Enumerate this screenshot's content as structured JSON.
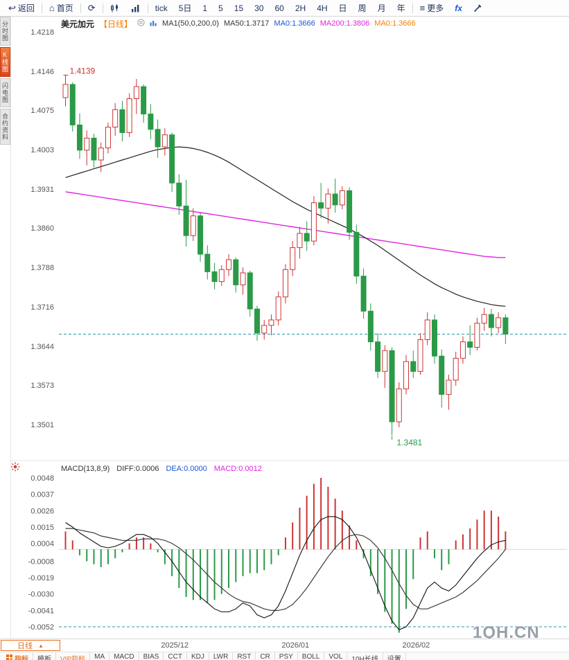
{
  "toolbar": {
    "items": [
      {
        "name": "back-button",
        "icon": "back-arrow-icon",
        "label": "返回"
      },
      {
        "sep": true
      },
      {
        "name": "home-button",
        "icon": "home-icon",
        "label": "首页"
      },
      {
        "sep": true
      },
      {
        "name": "refresh-button",
        "icon": "refresh-icon",
        "label": ""
      },
      {
        "sep": true
      },
      {
        "name": "kline-style-button",
        "icon": "kline-chart-icon",
        "label": ""
      },
      {
        "name": "volume-style-button",
        "icon": "volume-bars-icon",
        "label": ""
      },
      {
        "sep": true
      },
      {
        "name": "period-tick-button",
        "label": "tick"
      },
      {
        "name": "period-5day-button",
        "label": "5日"
      },
      {
        "name": "period-1-button",
        "label": "1"
      },
      {
        "name": "period-5-button",
        "label": "5"
      },
      {
        "name": "period-15-button",
        "label": "15"
      },
      {
        "name": "period-30-button",
        "label": "30"
      },
      {
        "name": "period-60-button",
        "label": "60"
      },
      {
        "name": "period-2h-button",
        "label": "2H"
      },
      {
        "name": "period-4h-button",
        "label": "4H"
      },
      {
        "name": "period-day-button",
        "label": "日"
      },
      {
        "name": "period-week-button",
        "label": "周"
      },
      {
        "name": "period-month-button",
        "label": "月"
      },
      {
        "name": "period-year-button",
        "label": "年"
      },
      {
        "sep": true
      },
      {
        "name": "more-button",
        "icon": "menu-icon",
        "label": "更多"
      },
      {
        "name": "fx-button",
        "label": "fx",
        "cls": "tb-fx"
      },
      {
        "name": "draw-tools-button",
        "icon": "tools-icon",
        "label": ""
      }
    ]
  },
  "sidebar": {
    "items": [
      {
        "label": "分时图",
        "active": false
      },
      {
        "label": "K线图",
        "active": true
      },
      {
        "label": "闪电图",
        "active": false
      },
      {
        "label": "合约资料",
        "active": false
      }
    ]
  },
  "chart_header": {
    "symbol": "美元加元",
    "period_tag": "【日线】",
    "ma_setting": "MA1(50,0,200,0)",
    "ma50_label": "MA50:1.3717",
    "ma0_blue": "MA0:1.3666",
    "ma200_label": "MA200:1.3806",
    "ma0_orange": "MA0:1.3666"
  },
  "macd_header": {
    "title": "MACD(13,8,9)",
    "diff": "DIFF:0.0006",
    "dea": "DEA:0.0000",
    "macd": "MACD:0.0012"
  },
  "annotations": {
    "high_label": "1.4139",
    "low_label": "1.3481"
  },
  "watermark": "1QH.CN",
  "bottom": {
    "period_label": "日线",
    "arrow": "▲",
    "tabs": [
      {
        "label": "指标",
        "active": true,
        "icon": "indicator-grid-icon"
      },
      {
        "label": "模板"
      },
      {
        "label": "VIP指标",
        "vip": true
      },
      {
        "label": "MA"
      },
      {
        "label": "MACD"
      },
      {
        "label": "BIAS"
      },
      {
        "label": "CCT"
      },
      {
        "label": "KDJ"
      },
      {
        "label": "LWR"
      },
      {
        "label": "RST"
      },
      {
        "label": "CR"
      },
      {
        "label": "PSY"
      },
      {
        "label": "BOLL"
      },
      {
        "label": "VOL"
      },
      {
        "label": "10H长线"
      },
      {
        "label": "设置"
      }
    ]
  },
  "chart_data": {
    "type": "candlestick",
    "symbol": "美元加元",
    "period": "日线",
    "y_ticks": [
      "1.4218",
      "1.4146",
      "1.4075",
      "1.4003",
      "1.3931",
      "1.3860",
      "1.3788",
      "1.3716",
      "1.3644",
      "1.3573",
      "1.3501"
    ],
    "y_range": [
      1.3501,
      1.4218
    ],
    "current_price": 1.3666,
    "high_marker": {
      "index": 0,
      "price": 1.4139
    },
    "low_marker": {
      "index": 46,
      "price": 1.3481
    },
    "x_labels": [
      {
        "index": 16,
        "text": "2025/12"
      },
      {
        "index": 33,
        "text": "2026/01"
      },
      {
        "index": 50,
        "text": "2026/02"
      }
    ],
    "candles": [
      [
        1.4098,
        1.4139,
        1.4082,
        1.4122
      ],
      [
        1.4122,
        1.4126,
        1.4036,
        1.4048
      ],
      [
        1.4048,
        1.4069,
        1.3986,
        1.4002
      ],
      [
        1.4002,
        1.4038,
        1.3974,
        1.4024
      ],
      [
        1.4024,
        1.4032,
        1.397,
        1.3984
      ],
      [
        1.3984,
        1.4016,
        1.3962,
        1.4006
      ],
      [
        1.4006,
        1.4052,
        1.3996,
        1.4044
      ],
      [
        1.4044,
        1.4088,
        1.4028,
        1.4076
      ],
      [
        1.4076,
        1.4092,
        1.4018,
        1.4034
      ],
      [
        1.4034,
        1.4106,
        1.4026,
        1.4096
      ],
      [
        1.4096,
        1.4132,
        1.4068,
        1.4118
      ],
      [
        1.4118,
        1.4122,
        1.4052,
        1.4068
      ],
      [
        1.4068,
        1.4086,
        1.4022,
        1.404
      ],
      [
        1.404,
        1.4058,
        1.3988,
        1.4008
      ],
      [
        1.4008,
        1.4042,
        1.3992,
        1.403
      ],
      [
        1.403,
        1.4034,
        1.3926,
        1.3942
      ],
      [
        1.3942,
        1.3958,
        1.3884,
        1.39
      ],
      [
        1.39,
        1.3948,
        1.3826,
        1.3846
      ],
      [
        1.3846,
        1.3896,
        1.3836,
        1.3882
      ],
      [
        1.3882,
        1.3888,
        1.3798,
        1.3812
      ],
      [
        1.3812,
        1.3828,
        1.3766,
        1.378
      ],
      [
        1.378,
        1.3796,
        1.3748,
        1.3762
      ],
      [
        1.3762,
        1.3792,
        1.3754,
        1.3784
      ],
      [
        1.3784,
        1.3812,
        1.3772,
        1.3802
      ],
      [
        1.3802,
        1.3806,
        1.3742,
        1.3756
      ],
      [
        1.3756,
        1.3788,
        1.3738,
        1.3778
      ],
      [
        1.3778,
        1.3782,
        1.3698,
        1.3712
      ],
      [
        1.3712,
        1.3718,
        1.3654,
        1.3668
      ],
      [
        1.3668,
        1.3692,
        1.3656,
        1.3682
      ],
      [
        1.3682,
        1.3702,
        1.3664,
        1.3692
      ],
      [
        1.3692,
        1.3744,
        1.3682,
        1.3734
      ],
      [
        1.3734,
        1.3794,
        1.3722,
        1.3784
      ],
      [
        1.3784,
        1.3836,
        1.3772,
        1.3824
      ],
      [
        1.3824,
        1.3862,
        1.3804,
        1.385
      ],
      [
        1.385,
        1.3872,
        1.3818,
        1.3836
      ],
      [
        1.3836,
        1.3918,
        1.3828,
        1.3906
      ],
      [
        1.3906,
        1.3942,
        1.3878,
        1.3896
      ],
      [
        1.3896,
        1.3932,
        1.3868,
        1.3922
      ],
      [
        1.3922,
        1.395,
        1.3888,
        1.3902
      ],
      [
        1.3902,
        1.3936,
        1.3894,
        1.3928
      ],
      [
        1.3928,
        1.3934,
        1.3838,
        1.3852
      ],
      [
        1.3852,
        1.3866,
        1.3758,
        1.3772
      ],
      [
        1.3772,
        1.3786,
        1.3694,
        1.3708
      ],
      [
        1.3708,
        1.3722,
        1.3636,
        1.3652
      ],
      [
        1.3652,
        1.3668,
        1.3586,
        1.3598
      ],
      [
        1.3598,
        1.3646,
        1.3568,
        1.3636
      ],
      [
        1.3636,
        1.3642,
        1.3481,
        1.3506
      ],
      [
        1.3506,
        1.3578,
        1.3496,
        1.3566
      ],
      [
        1.3566,
        1.3628,
        1.3556,
        1.3616
      ],
      [
        1.3616,
        1.3636,
        1.3586,
        1.3598
      ],
      [
        1.3598,
        1.3668,
        1.3592,
        1.3656
      ],
      [
        1.3656,
        1.3706,
        1.3646,
        1.3692
      ],
      [
        1.3692,
        1.3702,
        1.3612,
        1.3626
      ],
      [
        1.3626,
        1.3638,
        1.3532,
        1.3556
      ],
      [
        1.3556,
        1.3592,
        1.3528,
        1.3582
      ],
      [
        1.3582,
        1.3634,
        1.3572,
        1.3622
      ],
      [
        1.3622,
        1.3662,
        1.3612,
        1.3652
      ],
      [
        1.3652,
        1.3682,
        1.3628,
        1.3642
      ],
      [
        1.3642,
        1.3696,
        1.3636,
        1.3686
      ],
      [
        1.3686,
        1.3714,
        1.3672,
        1.3702
      ],
      [
        1.3702,
        1.3712,
        1.3662,
        1.3678
      ],
      [
        1.3678,
        1.3706,
        1.3668,
        1.3696
      ],
      [
        1.3696,
        1.3702,
        1.3648,
        1.3666
      ]
    ],
    "ma50": [
      1.3952,
      1.3956,
      1.396,
      1.3964,
      1.3968,
      1.3972,
      1.3976,
      1.398,
      1.3984,
      1.3988,
      1.3992,
      1.3996,
      1.4,
      1.4003,
      1.4005,
      1.4007,
      1.4008,
      1.4007,
      1.4005,
      1.4002,
      1.3998,
      1.3993,
      1.3987,
      1.398,
      1.3972,
      1.3964,
      1.3956,
      1.3948,
      1.394,
      1.3932,
      1.3924,
      1.3916,
      1.3908,
      1.3901,
      1.3894,
      1.3888,
      1.3882,
      1.3876,
      1.387,
      1.3864,
      1.3858,
      1.3851,
      1.3844,
      1.3836,
      1.3828,
      1.3819,
      1.381,
      1.3801,
      1.3792,
      1.3783,
      1.3774,
      1.3766,
      1.3758,
      1.3751,
      1.3745,
      1.3739,
      1.3734,
      1.373,
      1.3726,
      1.3723,
      1.372,
      1.3718,
      1.3717
    ],
    "ma200": [
      1.3926,
      1.3924,
      1.3922,
      1.392,
      1.3918,
      1.3916,
      1.3914,
      1.3912,
      1.391,
      1.3908,
      1.3906,
      1.3904,
      1.3902,
      1.39,
      1.3898,
      1.3896,
      1.3894,
      1.3892,
      1.389,
      1.3888,
      1.3886,
      1.3884,
      1.3882,
      1.388,
      1.3878,
      1.3876,
      1.3874,
      1.3872,
      1.387,
      1.3868,
      1.3866,
      1.3864,
      1.3862,
      1.386,
      1.3858,
      1.3856,
      1.3854,
      1.3852,
      1.385,
      1.3848,
      1.3846,
      1.3844,
      1.3842,
      1.384,
      1.3838,
      1.3836,
      1.3834,
      1.3832,
      1.383,
      1.3828,
      1.3826,
      1.3824,
      1.3822,
      1.382,
      1.3818,
      1.3816,
      1.3814,
      1.3812,
      1.381,
      1.3808,
      1.3807,
      1.3806,
      1.3806
    ],
    "macd": {
      "params": "13,8,9",
      "diff_last": 0.0006,
      "dea_last": 0.0,
      "macd_last": 0.0012,
      "y_ticks": [
        "0.0048",
        "0.0037",
        "0.0026",
        "0.0015",
        "0.0004",
        "-0.0008",
        "-0.0019",
        "-0.0030",
        "-0.0041",
        "-0.0052"
      ],
      "y_range": [
        -0.0052,
        0.0048
      ],
      "value_unit": 0.0001,
      "hist": [
        12,
        6,
        -4,
        -8,
        -10,
        -12,
        -10,
        -6,
        -2,
        4,
        8,
        8,
        4,
        -2,
        -10,
        -18,
        -26,
        -32,
        -34,
        -34,
        -36,
        -34,
        -30,
        -26,
        -22,
        -18,
        -16,
        -16,
        -14,
        -10,
        -4,
        8,
        18,
        28,
        36,
        44,
        48,
        42,
        34,
        26,
        16,
        6,
        -6,
        -18,
        -30,
        -42,
        -50,
        -56,
        -40,
        -20,
        8,
        12,
        -6,
        -14,
        -10,
        6,
        10,
        14,
        20,
        26,
        26,
        22,
        12
      ],
      "diff": [
        18,
        15,
        11,
        8,
        5,
        2,
        1,
        2,
        4,
        7,
        10,
        10,
        8,
        4,
        -2,
        -8,
        -15,
        -22,
        -27,
        -32,
        -36,
        -40,
        -42,
        -42,
        -40,
        -36,
        -38,
        -44,
        -46,
        -44,
        -38,
        -28,
        -16,
        -4,
        6,
        14,
        20,
        22,
        22,
        20,
        15,
        8,
        -2,
        -14,
        -26,
        -38,
        -48,
        -54,
        -52,
        -46,
        -36,
        -26,
        -22,
        -26,
        -28,
        -24,
        -18,
        -12,
        -6,
        -1,
        3,
        5,
        6
      ],
      "dea": [
        14,
        14,
        13,
        12,
        11,
        9,
        8,
        7,
        6,
        6,
        6,
        7,
        7,
        7,
        6,
        4,
        1,
        -3,
        -7,
        -12,
        -17,
        -22,
        -26,
        -30,
        -33,
        -35,
        -36,
        -38,
        -40,
        -41,
        -41,
        -40,
        -37,
        -32,
        -26,
        -19,
        -12,
        -5,
        1,
        6,
        9,
        10,
        9,
        6,
        1,
        -6,
        -14,
        -23,
        -31,
        -37,
        -40,
        -40,
        -38,
        -36,
        -34,
        -32,
        -29,
        -25,
        -21,
        -16,
        -11,
        -6,
        0
      ]
    },
    "colors": {
      "up": "#cc3333",
      "down": "#2a9a47",
      "ma50": "#222222",
      "ma200": "#e225e2",
      "dashed": "#2a96a8",
      "diff_line": "#111111",
      "dea_line": "#3c3c3c",
      "axis_text": "#555555"
    }
  }
}
